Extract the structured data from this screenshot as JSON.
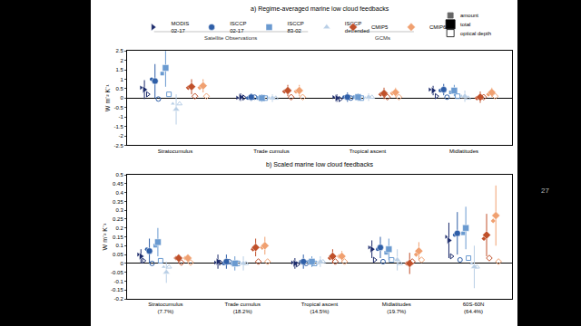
{
  "chart_data": [
    {
      "type": "scatter",
      "title": "a) Regime-averaged marine low cloud feedbacks",
      "y_label": "W m⁻² K⁻¹",
      "categories": [
        "Stratocumulus",
        "Trade cumulus",
        "Tropical ascent",
        "Midlatitudes"
      ],
      "ylim": [
        -2.5,
        2.5
      ],
      "yticks": [
        -2.5,
        -2,
        -1.5,
        -1,
        -0.5,
        0,
        0.5,
        1,
        1.5,
        2,
        2.5
      ],
      "grid": false,
      "legend": "top",
      "groups": [
        {
          "label": "Satellite Observations",
          "series": [
            "MODIS 02-17",
            "ISCCP 02-17",
            "ISCCP 83-02",
            "ISCCP detrended"
          ]
        },
        {
          "label": "GCMs",
          "series": [
            "CMIP5",
            "CMIP6"
          ]
        }
      ],
      "components": [
        "amount",
        "total",
        "optical depth"
      ],
      "series": [
        {
          "name": "MODIS 02-17",
          "color": "#1b2a6b",
          "marker": "triangle-right",
          "values": [
            0.45,
            0.05,
            0.0,
            0.4
          ],
          "error": [
            0.5,
            0.2,
            0.2,
            0.25
          ],
          "amount": [
            0.55,
            0.02,
            0.05,
            0.45
          ],
          "optical_depth": [
            0.2,
            0.03,
            -0.05,
            0.1
          ]
        },
        {
          "name": "ISCCP 02-17",
          "color": "#2f5fa8",
          "marker": "circle",
          "values": [
            0.9,
            0.05,
            0.05,
            0.45
          ],
          "error": [
            0.9,
            0.2,
            0.25,
            0.3
          ],
          "amount": [
            1.0,
            0.0,
            0.05,
            0.4
          ],
          "optical_depth": [
            -0.05,
            0.05,
            0.0,
            0.05
          ]
        },
        {
          "name": "ISCCP 83-02",
          "color": "#6a9ad0",
          "marker": "square",
          "values": [
            1.6,
            0.0,
            0.05,
            0.4
          ],
          "error": [
            1.0,
            0.2,
            0.2,
            0.3
          ],
          "amount": [
            1.3,
            0.0,
            0.05,
            0.3
          ],
          "optical_depth": [
            0.2,
            0.0,
            0.0,
            0.1
          ]
        },
        {
          "name": "ISCCP detrended",
          "color": "#b9cfe6",
          "marker": "triangle-up",
          "values": [
            -0.6,
            0.0,
            0.05,
            0.1
          ],
          "error": [
            0.8,
            0.2,
            0.2,
            0.3
          ],
          "amount": [
            -0.3,
            0.0,
            0.0,
            0.1
          ],
          "optical_depth": [
            -0.3,
            0.0,
            0.05,
            0.0
          ]
        },
        {
          "name": "CMIP5",
          "color": "#c0502a",
          "marker": "diamond",
          "values": [
            0.6,
            0.4,
            0.25,
            0.05
          ],
          "error": [
            0.4,
            0.3,
            0.3,
            0.3
          ],
          "amount": [
            0.55,
            0.35,
            0.2,
            0.0
          ],
          "optical_depth": [
            0.1,
            0.05,
            0.05,
            0.05
          ]
        },
        {
          "name": "CMIP6",
          "color": "#f0a070",
          "marker": "diamond",
          "values": [
            0.65,
            0.4,
            0.3,
            0.3
          ],
          "error": [
            0.35,
            0.3,
            0.25,
            0.25
          ],
          "amount": [
            0.55,
            0.35,
            0.25,
            0.2
          ],
          "optical_depth": [
            0.1,
            0.05,
            0.05,
            0.1
          ]
        }
      ]
    },
    {
      "type": "scatter",
      "title": "b) Scaled marine low cloud feedbacks",
      "y_label": "W m⁻² K⁻¹",
      "categories": [
        "Stratocumulus (7.7%)",
        "Trade cumulus (18.2%)",
        "Tropical ascent (14.5%)",
        "Midlatitudes (19.7%)",
        "60S-60N (64.4%)"
      ],
      "ylim": [
        -0.2,
        0.5
      ],
      "yticks": [
        -0.2,
        -0.15,
        -0.1,
        -0.05,
        0,
        0.05,
        0.1,
        0.15,
        0.2,
        0.25,
        0.3,
        0.35,
        0.4,
        0.45,
        0.5
      ],
      "grid": false,
      "series": [
        {
          "name": "MODIS 02-17",
          "color": "#1b2a6b",
          "marker": "triangle-right",
          "values": [
            0.04,
            0.01,
            0.0,
            0.08,
            0.13
          ],
          "error": [
            0.04,
            0.04,
            0.03,
            0.05,
            0.1
          ],
          "amount": [
            0.05,
            0.005,
            0.005,
            0.09,
            0.15
          ],
          "optical_depth": [
            0.015,
            0.005,
            -0.005,
            0.02,
            0.04
          ]
        },
        {
          "name": "ISCCP 02-17",
          "color": "#2f5fa8",
          "marker": "circle",
          "values": [
            0.07,
            0.01,
            0.01,
            0.09,
            0.17
          ],
          "error": [
            0.07,
            0.04,
            0.04,
            0.06,
            0.12
          ],
          "amount": [
            0.08,
            0.0,
            0.01,
            0.08,
            0.16
          ],
          "optical_depth": [
            0.0,
            0.01,
            0.0,
            0.01,
            0.02
          ]
        },
        {
          "name": "ISCCP 83-02",
          "color": "#6a9ad0",
          "marker": "square",
          "values": [
            0.12,
            0.0,
            0.01,
            0.08,
            0.2
          ],
          "error": [
            0.08,
            0.04,
            0.03,
            0.06,
            0.12
          ],
          "amount": [
            0.1,
            0.0,
            0.01,
            0.06,
            0.17
          ],
          "optical_depth": [
            0.015,
            0.0,
            0.0,
            0.02,
            0.03
          ]
        },
        {
          "name": "ISCCP detrended",
          "color": "#b9cfe6",
          "marker": "triangle-up",
          "values": [
            -0.05,
            0.0,
            0.01,
            0.02,
            -0.02
          ],
          "error": [
            0.06,
            0.04,
            0.03,
            0.06,
            0.12
          ],
          "amount": [
            -0.02,
            0.0,
            0.0,
            0.02,
            0.0
          ],
          "optical_depth": [
            -0.02,
            0.0,
            0.01,
            0.0,
            -0.02
          ]
        },
        {
          "name": "CMIP5",
          "color": "#c0502a",
          "marker": "diamond",
          "values": [
            0.03,
            0.09,
            0.04,
            0.0,
            0.16
          ],
          "error": [
            0.02,
            0.05,
            0.04,
            0.06,
            0.12
          ],
          "amount": [
            0.03,
            0.08,
            0.03,
            0.0,
            0.14
          ],
          "optical_depth": [
            0.005,
            0.01,
            0.01,
            0.01,
            0.03
          ]
        },
        {
          "name": "CMIP6",
          "color": "#f0a070",
          "marker": "diamond",
          "values": [
            0.03,
            0.1,
            0.04,
            0.07,
            0.27
          ],
          "error": [
            0.02,
            0.05,
            0.03,
            0.05,
            0.17
          ],
          "amount": [
            0.03,
            0.09,
            0.04,
            0.05,
            0.24
          ],
          "optical_depth": [
            0.005,
            0.01,
            0.01,
            0.02,
            0.01
          ]
        }
      ]
    }
  ],
  "page_number": "27"
}
